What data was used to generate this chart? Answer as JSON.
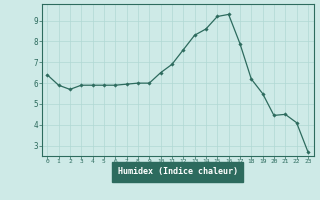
{
  "x": [
    0,
    1,
    2,
    3,
    4,
    5,
    6,
    7,
    8,
    9,
    10,
    11,
    12,
    13,
    14,
    15,
    16,
    17,
    18,
    19,
    20,
    21,
    22,
    23
  ],
  "y": [
    6.4,
    5.9,
    5.7,
    5.9,
    5.9,
    5.9,
    5.9,
    5.95,
    6.0,
    6.0,
    6.5,
    6.9,
    7.6,
    8.3,
    8.6,
    9.2,
    9.3,
    7.9,
    6.2,
    5.5,
    4.45,
    4.5,
    4.1,
    2.7
  ],
  "xlabel": "Humidex (Indice chaleur)",
  "ylim": [
    2.5,
    9.8
  ],
  "xlim": [
    -0.5,
    23.5
  ],
  "yticks": [
    3,
    4,
    5,
    6,
    7,
    8,
    9
  ],
  "xticks": [
    0,
    1,
    2,
    3,
    4,
    5,
    6,
    7,
    8,
    9,
    10,
    11,
    12,
    13,
    14,
    15,
    16,
    17,
    18,
    19,
    20,
    21,
    22,
    23
  ],
  "line_color": "#2d6b5e",
  "marker": "D",
  "marker_size": 1.8,
  "bg_color": "#ceeae7",
  "grid_color": "#b0d8d4",
  "tick_color": "#2d6b5e",
  "xlabel_color": "#ffffff",
  "xlabel_bg": "#2d6b5e",
  "spine_color": "#2d6b5e"
}
